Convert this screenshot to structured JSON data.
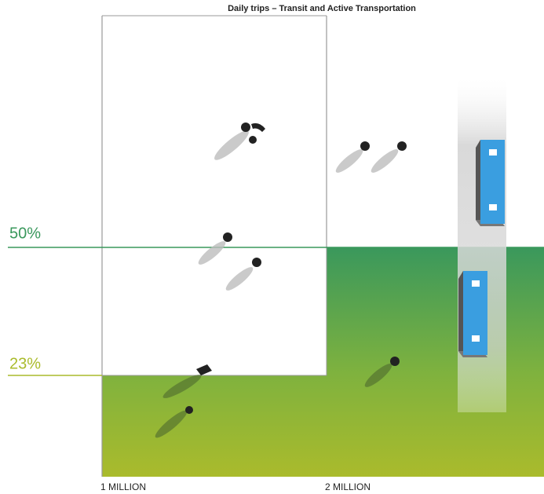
{
  "header": {
    "title": "Daily trips – Transit and Active Transportation"
  },
  "levels": [
    {
      "label": "50%"
    },
    {
      "label": "23%"
    }
  ],
  "x_labels": [
    {
      "label": "1 MILLION"
    },
    {
      "label": "2 MILLION"
    }
  ]
}
